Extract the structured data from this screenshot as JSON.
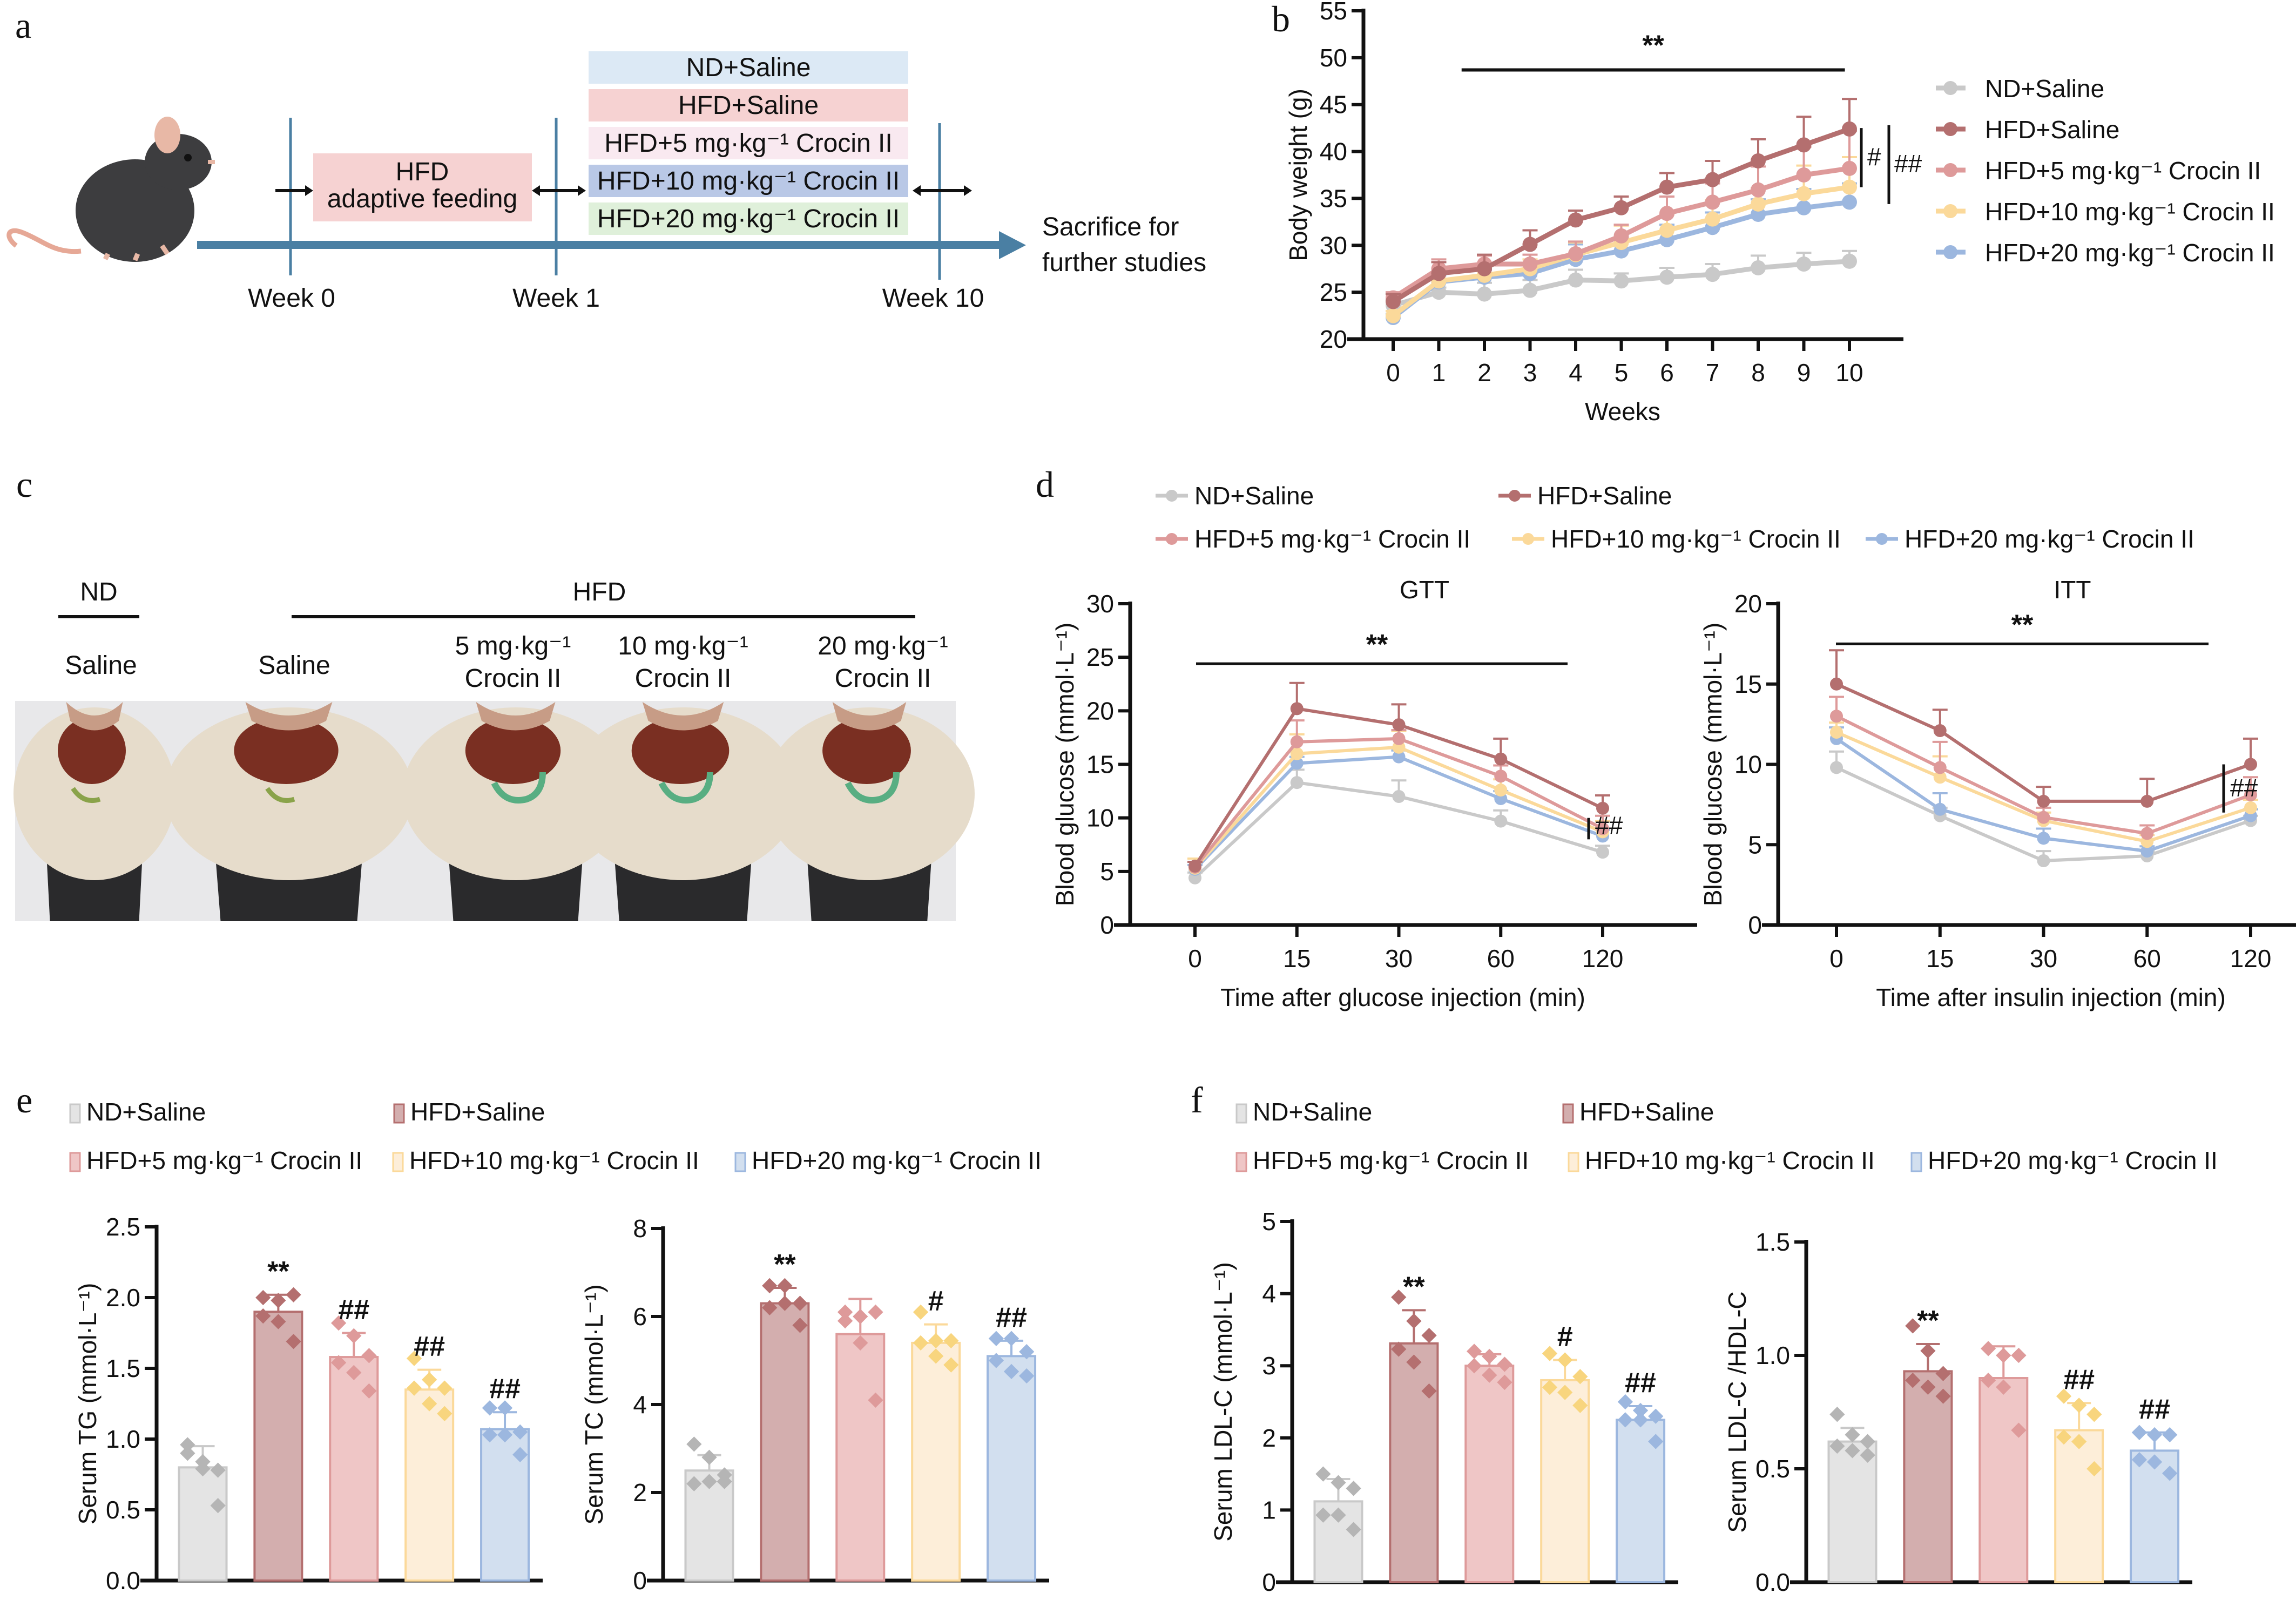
{
  "groups": [
    {
      "name": "ND+Saline",
      "color": "#c9c9c9",
      "fill": "#e4e4e4"
    },
    {
      "name": "HFD+Saline",
      "color": "#b46f6f",
      "fill": "#d3aeae"
    },
    {
      "name": "HFD+5 mg·kg⁻¹ Crocin II",
      "color": "#de9a9a",
      "fill": "#efc6c6"
    },
    {
      "name": "HFD+10 mg·kg⁻¹ Crocin II",
      "color": "#fbd99a",
      "fill": "#fdeed9"
    },
    {
      "name": "HFD+20 mg·kg⁻¹ Crocin II",
      "color": "#9cb7df",
      "fill": "#d2dfef"
    }
  ],
  "panel_letters": {
    "a": "a",
    "b": "b",
    "c": "c",
    "d": "d",
    "e": "e",
    "f": "f"
  },
  "panel_a": {
    "group_boxes": [
      {
        "label": "ND+Saline",
        "color": "#dce9f5"
      },
      {
        "label": "HFD+Saline",
        "color": "#f6d2d2"
      },
      {
        "label": "HFD+5 mg·kg⁻¹ Crocin II",
        "color": "#f9e9f0"
      },
      {
        "label": "HFD+10 mg·kg⁻¹ Crocin II",
        "color": "#b9c8e6"
      },
      {
        "label": "HFD+20 mg·kg⁻¹ Crocin II",
        "color": "#dff0da"
      }
    ],
    "adaptive_box": {
      "line1": "HFD",
      "line2": "adaptive feeding",
      "color": "#f6d2d2"
    },
    "timepoints": [
      "Week 0",
      "Week 1",
      "Week 10"
    ],
    "end_label": [
      "Sacrifice for",
      "further studies"
    ],
    "timeline_color": "#4a7fa3"
  },
  "panel_c": {
    "nd_header": "ND",
    "hfd_header": "HFD",
    "columns": [
      {
        "line1": "",
        "line2": "Saline"
      },
      {
        "line1": "",
        "line2": "Saline"
      },
      {
        "line1": "5 mg·kg⁻¹",
        "line2": "Crocin II"
      },
      {
        "line1": "10 mg·kg⁻¹",
        "line2": "Crocin II"
      },
      {
        "line1": "20 mg·kg⁻¹",
        "line2": "Crocin II"
      }
    ],
    "photo_alt": "Dissected mice abdominal cavities"
  },
  "chart_data": [
    {
      "id": "b",
      "type": "line",
      "title": "",
      "xlabel": "Weeks",
      "ylabel": "Body weight (g)",
      "x": [
        0,
        1,
        2,
        3,
        4,
        5,
        6,
        7,
        8,
        9,
        10
      ],
      "ylim": [
        20,
        55
      ],
      "yticks": [
        20,
        25,
        30,
        35,
        40,
        45,
        50,
        55
      ],
      "series": [
        {
          "name": "ND+Saline",
          "values": [
            23.6,
            25.0,
            24.8,
            25.2,
            26.3,
            26.2,
            26.6,
            26.9,
            27.6,
            28.0,
            28.3
          ],
          "err": [
            0.6,
            0.5,
            1.2,
            1.1,
            1.1,
            0.8,
            1.0,
            1.1,
            1.3,
            1.2,
            1.1
          ]
        },
        {
          "name": "HFD+Saline",
          "values": [
            24.0,
            27.0,
            27.5,
            30.1,
            32.7,
            34.0,
            36.2,
            37.0,
            39.0,
            40.7,
            42.4
          ],
          "err": [
            0.8,
            1.2,
            1.5,
            1.5,
            1.0,
            1.2,
            1.5,
            2.0,
            2.3,
            3.0,
            3.2
          ]
        },
        {
          "name": "HFD+5 mg·kg⁻¹ Crocin II",
          "values": [
            24.4,
            27.5,
            28.0,
            28.0,
            29.1,
            31.0,
            33.4,
            34.6,
            35.9,
            37.5,
            38.2
          ],
          "err": [
            0.6,
            1.0,
            0.9,
            1.0,
            1.3,
            1.2,
            1.8,
            2.0,
            2.5,
            3.0,
            4.0
          ]
        },
        {
          "name": "HFD+10 mg·kg⁻¹ Crocin II",
          "values": [
            22.5,
            26.2,
            26.8,
            27.5,
            29.0,
            30.3,
            31.6,
            32.8,
            34.4,
            35.5,
            36.2
          ],
          "err": [
            0.5,
            0.8,
            0.9,
            1.0,
            1.3,
            1.8,
            1.7,
            2.0,
            1.7,
            3.0,
            3.2
          ]
        },
        {
          "name": "HFD+20 mg·kg⁻¹ Crocin II",
          "values": [
            22.3,
            26.1,
            26.6,
            27.0,
            28.5,
            29.4,
            30.6,
            31.9,
            33.3,
            34.0,
            34.6
          ],
          "err": [
            0.4,
            0.7,
            0.8,
            1.0,
            1.6,
            1.4,
            1.6,
            1.6,
            1.6,
            2.0,
            2.0
          ]
        }
      ],
      "annotations": {
        "bracket_label": "**",
        "bracket_x": [
          1.5,
          9.9
        ],
        "bracket_y": 48.7,
        "side_marks": [
          "#",
          "##"
        ]
      },
      "legend": "right"
    },
    {
      "id": "d-gtt",
      "type": "line",
      "title": "GTT",
      "xlabel": "Time after glucose injection (min)",
      "ylabel": "Blood glucose (mmol·L⁻¹)",
      "categories": [
        "0",
        "15",
        "30",
        "60",
        "120"
      ],
      "ylim": [
        0,
        30
      ],
      "yticks": [
        0,
        5,
        10,
        15,
        20,
        25,
        30
      ],
      "series": [
        {
          "name": "ND+Saline",
          "values": [
            4.4,
            13.3,
            12.0,
            9.7,
            6.8
          ],
          "err": [
            0.5,
            1.2,
            1.5,
            1.0,
            0.6
          ]
        },
        {
          "name": "HFD+Saline",
          "values": [
            5.5,
            20.2,
            18.7,
            15.5,
            10.9
          ],
          "err": [
            0.4,
            2.4,
            1.9,
            1.9,
            1.2
          ]
        },
        {
          "name": "HFD+5 mg·kg⁻¹ Crocin II",
          "values": [
            5.4,
            17.1,
            17.4,
            13.9,
            9.0
          ],
          "err": [
            0.5,
            2.0,
            0.8,
            1.0,
            1.2
          ]
        },
        {
          "name": "HFD+10 mg·kg⁻¹ Crocin II",
          "values": [
            5.3,
            16.0,
            16.6,
            12.6,
            8.7
          ],
          "err": [
            0.9,
            1.8,
            1.5,
            1.0,
            1.0
          ]
        },
        {
          "name": "HFD+20 mg·kg⁻¹ Crocin II",
          "values": [
            5.2,
            15.1,
            15.7,
            11.8,
            8.3
          ],
          "err": [
            0.4,
            0.6,
            0.6,
            0.7,
            0.6
          ]
        }
      ],
      "annotations": {
        "bracket_label": "**",
        "bracket_y": 24.4,
        "side_mark": "##"
      },
      "legend": "top"
    },
    {
      "id": "d-itt",
      "type": "line",
      "title": "ITT",
      "xlabel": "Time after insulin injection (min)",
      "ylabel": "Blood glucose (mmol·L⁻¹)",
      "categories": [
        "0",
        "15",
        "30",
        "60",
        "120"
      ],
      "ylim": [
        0,
        20
      ],
      "yticks": [
        0,
        5,
        10,
        15,
        20
      ],
      "series": [
        {
          "name": "ND+Saline",
          "values": [
            9.8,
            6.8,
            4.0,
            4.3,
            6.5
          ],
          "err": [
            1.0,
            0.5,
            0.6,
            0.3,
            0.3
          ]
        },
        {
          "name": "HFD+Saline",
          "values": [
            15.0,
            12.1,
            7.7,
            7.7,
            10.0
          ],
          "err": [
            2.1,
            1.3,
            0.9,
            1.4,
            1.6
          ]
        },
        {
          "name": "HFD+5 mg·kg⁻¹ Crocin II",
          "values": [
            13.0,
            9.8,
            6.7,
            5.7,
            8.1
          ],
          "err": [
            1.2,
            1.6,
            0.6,
            0.5,
            1.1
          ]
        },
        {
          "name": "HFD+10 mg·kg⁻¹ Crocin II",
          "values": [
            12.0,
            9.2,
            6.5,
            5.2,
            7.3
          ],
          "err": [
            0.6,
            1.3,
            0.5,
            0.4,
            0.5
          ]
        },
        {
          "name": "HFD+20 mg·kg⁻¹ Crocin II",
          "values": [
            11.6,
            7.2,
            5.4,
            4.6,
            6.8
          ],
          "err": [
            0.7,
            1.0,
            0.6,
            0.3,
            0.4
          ]
        }
      ],
      "annotations": {
        "bracket_label": "**",
        "bracket_y": 17.5,
        "side_mark": "##"
      },
      "legend": "top"
    },
    {
      "id": "e-tg",
      "type": "bar",
      "ylabel": "Serum TG (mmol·L⁻¹)",
      "categories": [
        "ND+Saline",
        "HFD+Saline",
        "HFD+5 mg·kg⁻¹ Crocin II",
        "HFD+10 mg·kg⁻¹ Crocin II",
        "HFD+20 mg·kg⁻¹ Crocin II"
      ],
      "values": [
        0.8,
        1.9,
        1.58,
        1.35,
        1.07
      ],
      "err": [
        0.15,
        0.12,
        0.17,
        0.14,
        0.12
      ],
      "points": [
        [
          0.96,
          0.84,
          0.78,
          0.9,
          0.79,
          0.53
        ],
        [
          2.0,
          1.98,
          2.02,
          1.87,
          1.83,
          1.69
        ],
        [
          1.82,
          1.73,
          1.59,
          1.54,
          1.47,
          1.34
        ],
        [
          1.57,
          1.42,
          1.36,
          1.36,
          1.25,
          1.18
        ],
        [
          1.22,
          1.22,
          1.05,
          1.03,
          1.03,
          0.89
        ]
      ],
      "sig": [
        "",
        "**",
        "##",
        "##",
        "##"
      ],
      "ylim": [
        0,
        2.5
      ],
      "yticks": [
        "0.0",
        "0.5",
        "1.0",
        "1.5",
        "2.0",
        "2.5"
      ]
    },
    {
      "id": "e-tc",
      "type": "bar",
      "ylabel": "Serum TC (mmol·L⁻¹)",
      "categories": [
        "ND+Saline",
        "HFD+Saline",
        "HFD+5 mg·kg⁻¹ Crocin II",
        "HFD+10 mg·kg⁻¹ Crocin II",
        "HFD+20 mg·kg⁻¹ Crocin II"
      ],
      "values": [
        2.5,
        6.3,
        5.6,
        5.4,
        5.1
      ],
      "err": [
        0.35,
        0.35,
        0.8,
        0.42,
        0.35
      ],
      "points": [
        [
          3.1,
          2.8,
          2.4,
          2.2,
          2.25,
          2.25
        ],
        [
          6.7,
          6.7,
          6.3,
          6.2,
          6.3,
          5.8
        ],
        [
          6.1,
          6.0,
          6.1,
          5.9,
          5.4,
          4.1
        ],
        [
          6.1,
          5.45,
          5.45,
          5.4,
          5.1,
          4.9
        ],
        [
          5.5,
          5.5,
          5.2,
          5.0,
          4.75,
          4.65
        ]
      ],
      "sig": [
        "",
        "**",
        "",
        "#",
        "##"
      ],
      "ylim": [
        0,
        8
      ],
      "yticks": [
        "0",
        "2",
        "4",
        "6",
        "8"
      ]
    },
    {
      "id": "f-ldl",
      "type": "bar",
      "ylabel": "Serum LDL-C (mmol·L⁻¹)",
      "categories": [
        "ND+Saline",
        "HFD+Saline",
        "HFD+5 mg·kg⁻¹ Crocin II",
        "HFD+10 mg·kg⁻¹ Crocin II",
        "HFD+20 mg·kg⁻¹ Crocin II"
      ],
      "values": [
        1.12,
        3.31,
        3.0,
        2.8,
        2.25
      ],
      "err": [
        0.31,
        0.46,
        0.16,
        0.28,
        0.19
      ],
      "points": [
        [
          1.5,
          1.38,
          1.3,
          0.93,
          0.93,
          0.73
        ],
        [
          3.95,
          3.62,
          3.42,
          3.23,
          3.05,
          2.65
        ],
        [
          3.2,
          3.13,
          3.02,
          3.0,
          2.87,
          2.77
        ],
        [
          3.17,
          3.08,
          2.85,
          2.7,
          2.63,
          2.45
        ],
        [
          2.5,
          2.38,
          2.3,
          2.25,
          2.25,
          1.95
        ]
      ],
      "sig": [
        "",
        "**",
        "",
        "#",
        "##"
      ],
      "ylim": [
        0,
        5
      ],
      "yticks": [
        "0",
        "1",
        "2",
        "3",
        "4",
        "5"
      ]
    },
    {
      "id": "f-ratio",
      "type": "bar",
      "ylabel": "Serum LDL-C /HDL-C",
      "categories": [
        "ND+Saline",
        "HFD+Saline",
        "HFD+5 mg·kg⁻¹ Crocin II",
        "HFD+10 mg·kg⁻¹ Crocin II",
        "HFD+20 mg·kg⁻¹ Crocin II"
      ],
      "values": [
        0.62,
        0.93,
        0.9,
        0.67,
        0.58
      ],
      "err": [
        0.06,
        0.12,
        0.14,
        0.12,
        0.08
      ],
      "points": [
        [
          0.74,
          0.65,
          0.62,
          0.6,
          0.58,
          0.56
        ],
        [
          1.13,
          1.02,
          0.92,
          0.89,
          0.86,
          0.82
        ],
        [
          1.03,
          1.0,
          1.0,
          0.89,
          0.86,
          0.67
        ],
        [
          0.82,
          0.78,
          0.74,
          0.64,
          0.62,
          0.5
        ],
        [
          0.66,
          0.65,
          0.65,
          0.54,
          0.53,
          0.48
        ]
      ],
      "sig": [
        "",
        "**",
        "",
        "##",
        "##"
      ],
      "ylim": [
        0,
        1.5
      ],
      "yticks": [
        "0.0",
        "0.5",
        "1.0",
        "1.5"
      ]
    }
  ]
}
